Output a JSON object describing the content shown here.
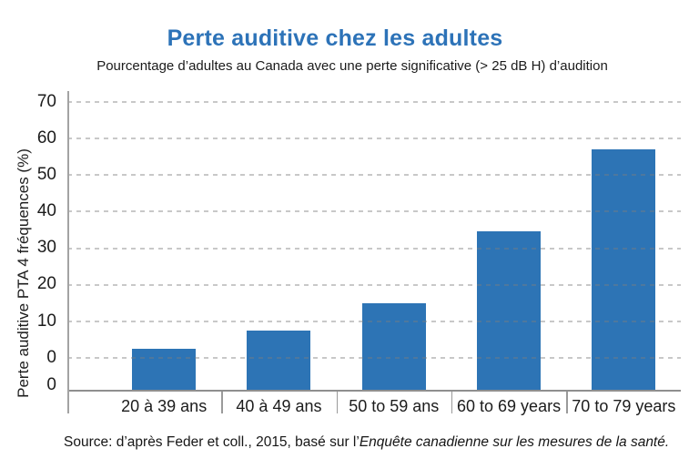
{
  "figure": {
    "title": "Perte auditive chez les adultes",
    "subtitle": "Pourcentage d’adultes au Canada avec une perte significative (> 25 dB H) d’audition",
    "y_axis_title": "Perte auditive PTA 4 fréquences (%)",
    "source_prefix": "Source: d’après Feder et coll., 2015, basé sur l’",
    "source_italic": "Enquête canadienne sur les mesures de la santé."
  },
  "chart_data": {
    "type": "bar",
    "title": "Perte auditive chez les adultes",
    "subtitle": "Pourcentage d’adultes au Canada avec une perte significative (> 25 dB H) d’audition",
    "categories": [
      "20 à 39 ans",
      "40 à 49 ans",
      "50 to 59 ans",
      "60 to 69 years",
      "70 to 79 years"
    ],
    "values": [
      2.3,
      7.5,
      14.8,
      34.5,
      57
    ],
    "xlabel": "",
    "ylabel": "Perte auditive PTA 4 fréquences (%)",
    "ylim": [
      0,
      70
    ],
    "yticks": [
      70,
      60,
      50,
      40,
      30,
      20,
      10,
      0
    ],
    "baseline_extra_tick_label": "0",
    "grid": "horizontal-dashed",
    "legend": "none",
    "bar_color": "#2d74b5",
    "note": "bars rise from a solid baseline drawn below the 0 gridline",
    "source": "Source: d’après Feder et coll., 2015, basé sur l’Enquête canadienne sur les mesures de la santé."
  },
  "colors": {
    "title": "#2d73b8",
    "bar": "#2d74b5",
    "axis": "#9a9a9a",
    "gridline": "#c6c6c6",
    "text": "#1c1c1c"
  }
}
